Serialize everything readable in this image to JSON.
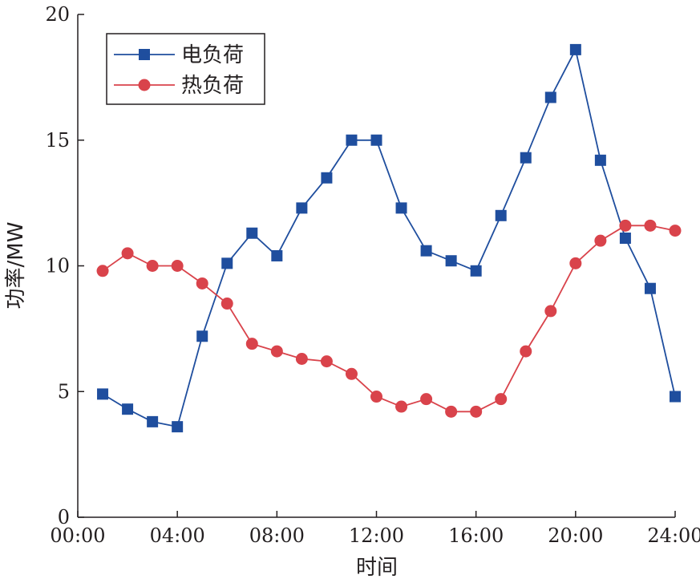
{
  "chart_data": {
    "type": "line",
    "title": "",
    "xlabel": "时间",
    "ylabel": "功率/MW",
    "x_ticks": [
      "00:00",
      "04:00",
      "08:00",
      "12:00",
      "16:00",
      "20:00",
      "24:00"
    ],
    "y_ticks": [
      "0",
      "5",
      "10",
      "15",
      "20"
    ],
    "xlim_hours": [
      0,
      24
    ],
    "ylim": [
      0,
      20
    ],
    "x_hours": [
      1,
      2,
      3,
      4,
      5,
      6,
      7,
      8,
      9,
      10,
      11,
      12,
      13,
      14,
      15,
      16,
      17,
      18,
      19,
      20,
      21,
      22,
      23,
      24
    ],
    "legend_position": "top-left",
    "grid": false,
    "series": [
      {
        "name": "电负荷",
        "color": "#1f4e9e",
        "marker": "square",
        "values": [
          4.9,
          4.3,
          3.8,
          3.6,
          7.2,
          10.1,
          11.3,
          10.4,
          12.3,
          13.5,
          15.0,
          15.0,
          12.3,
          10.6,
          10.2,
          9.8,
          12.0,
          14.3,
          16.7,
          18.6,
          14.2,
          11.1,
          9.1,
          4.8
        ]
      },
      {
        "name": "热负荷",
        "color": "#d9434b",
        "marker": "circle",
        "values": [
          9.8,
          10.5,
          10.0,
          10.0,
          9.3,
          8.5,
          6.9,
          6.6,
          6.3,
          6.2,
          5.7,
          4.8,
          4.4,
          4.7,
          4.2,
          4.2,
          4.7,
          6.6,
          8.2,
          10.1,
          11.0,
          11.6,
          11.6,
          11.4
        ]
      }
    ]
  }
}
